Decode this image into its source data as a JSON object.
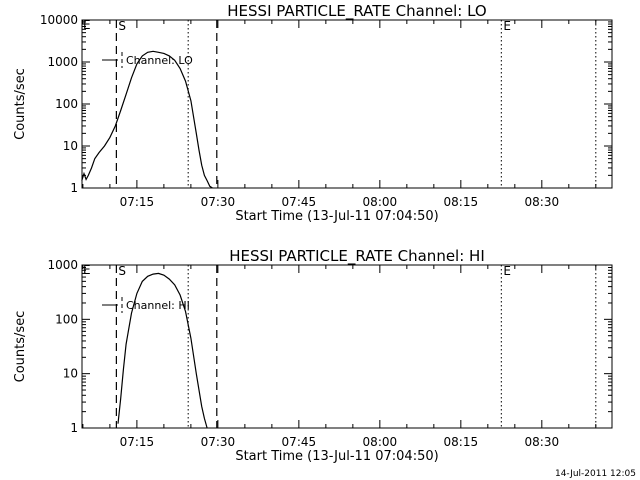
{
  "chart_data": [
    {
      "type": "line",
      "title": "HESSI PARTICLE_RATE Channel: LO",
      "xlabel": "Start Time (13-Jul-11 07:04:50)",
      "ylabel": "Counts/sec",
      "y_scale": "log",
      "ylim": [
        1,
        10000
      ],
      "xlim": [
        "07:04:50",
        "08:43"
      ],
      "x_tick_labels": [
        "07:15",
        "07:30",
        "07:45",
        "08:00",
        "08:15",
        "08:30"
      ],
      "y_tick_labels": [
        "1",
        "10",
        "100",
        "1000",
        "10000"
      ],
      "legend": "Channel: LO",
      "start_marker": "S",
      "end_marker": "E",
      "dashed_lines_at": [
        "07:11.2",
        "07:29.8"
      ],
      "dotted_lines_at": [
        "07:24.5",
        "08:22.5",
        "08:40.0"
      ],
      "series": [
        {
          "x": [
            "07:04.8",
            "07:05.2",
            "07:05.6",
            "07:06.0",
            "07:06.6",
            "07:07.2",
            "07:08.0",
            "07:09.0",
            "07:10.0",
            "07:11.0",
            "07:12.0",
            "07:13.0",
            "07:14.0",
            "07:15.0",
            "07:16.0",
            "07:17.0",
            "07:18.0",
            "07:19.0",
            "07:20.0",
            "07:21.0",
            "07:22.0",
            "07:23.0",
            "07:24.0",
            "07:25.0",
            "07:26.0",
            "07:26.5",
            "07:27.0",
            "07:27.5",
            "07:28.0",
            "07:28.5",
            "07:29.0"
          ],
          "values": [
            1.5,
            2.2,
            1.6,
            2.0,
            3.0,
            5.0,
            7.0,
            10,
            16,
            30,
            70,
            170,
            420,
            900,
            1400,
            1700,
            1800,
            1700,
            1600,
            1400,
            1100,
            700,
            350,
            120,
            20,
            8,
            3.5,
            2.0,
            1.5,
            1.1,
            1.0
          ]
        }
      ]
    },
    {
      "type": "line",
      "title": "HESSI PARTICLE_RATE Channel: HI",
      "xlabel": "Start Time (13-Jul-11 07:04:50)",
      "ylabel": "Counts/sec",
      "y_scale": "log",
      "ylim": [
        1,
        1000
      ],
      "xlim": [
        "07:04:50",
        "08:43"
      ],
      "x_tick_labels": [
        "07:15",
        "07:30",
        "07:45",
        "08:00",
        "08:15",
        "08:30"
      ],
      "y_tick_labels": [
        "1",
        "10",
        "100",
        "1000"
      ],
      "legend": "Channel: HI",
      "start_marker": "S",
      "end_marker": "E",
      "dashed_lines_at": [
        "07:11.2",
        "07:29.8"
      ],
      "dotted_lines_at": [
        "07:24.5",
        "08:22.5",
        "08:40.0"
      ],
      "series": [
        {
          "x": [
            "07:11.5",
            "07:12.0",
            "07:12.5",
            "07:13.0",
            "07:14.0",
            "07:15.0",
            "07:16.0",
            "07:17.0",
            "07:18.0",
            "07:19.0",
            "07:20.0",
            "07:21.0",
            "07:22.0",
            "07:23.0",
            "07:24.0",
            "07:25.0",
            "07:26.0",
            "07:27.0",
            "07:27.5",
            "07:28.0"
          ],
          "values": [
            1.2,
            3.5,
            12,
            35,
            130,
            300,
            500,
            620,
            680,
            700,
            650,
            550,
            430,
            280,
            140,
            45,
            10,
            2.5,
            1.5,
            1.0
          ]
        }
      ]
    }
  ],
  "footer_timestamp": "14-Jul-2011 12:05"
}
